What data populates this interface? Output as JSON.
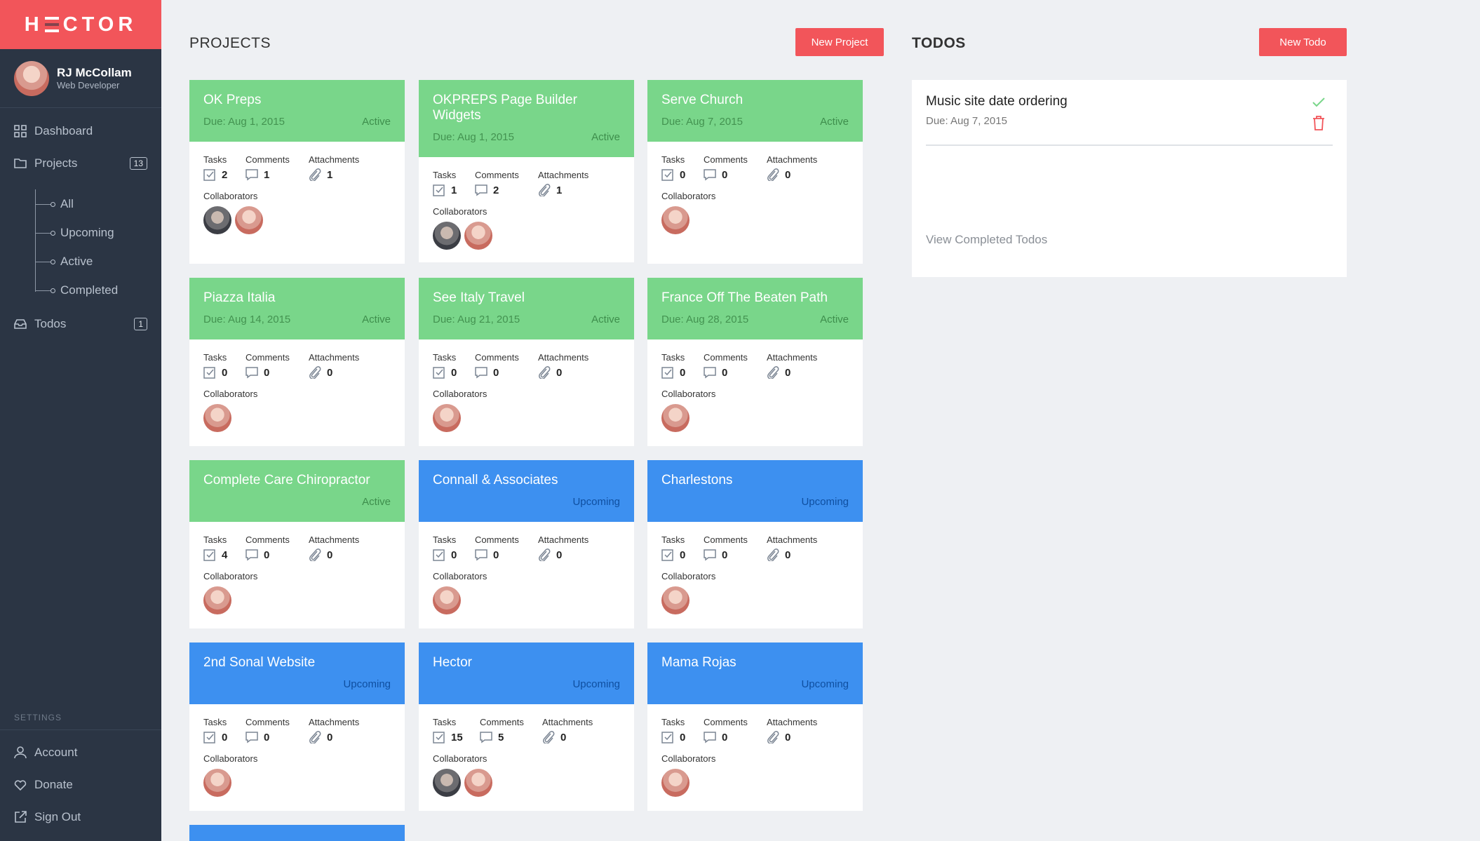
{
  "app": {
    "logo": "HECTOR"
  },
  "user": {
    "name": "RJ McCollam",
    "role": "Web Developer"
  },
  "nav": {
    "dashboard": "Dashboard",
    "projects": "Projects",
    "projects_count": "13",
    "sub": [
      "All",
      "Upcoming",
      "Active",
      "Completed"
    ],
    "todos": "Todos",
    "todos_count": "1",
    "settings_label": "SETTINGS",
    "account": "Account",
    "donate": "Donate",
    "sign_out": "Sign Out"
  },
  "projects": {
    "title": "PROJECTS",
    "new_button": "New Project",
    "labels": {
      "tasks": "Tasks",
      "comments": "Comments",
      "attachments": "Attachments",
      "collaborators": "Collaborators"
    },
    "cards": [
      {
        "title": "OK Preps",
        "due": "Due: Aug 1, 2015",
        "status": "Active",
        "tasks": "2",
        "comments": "1",
        "attachments": "1"
      },
      {
        "title": "OKPREPS Page Builder Widgets",
        "due": "Due: Aug 1, 2015",
        "status": "Active",
        "tasks": "1",
        "comments": "2",
        "attachments": "1"
      },
      {
        "title": "Serve Church",
        "due": "Due: Aug 7, 2015",
        "status": "Active",
        "tasks": "0",
        "comments": "0",
        "attachments": "0"
      },
      {
        "title": "Piazza Italia",
        "due": "Due: Aug 14, 2015",
        "status": "Active",
        "tasks": "0",
        "comments": "0",
        "attachments": "0"
      },
      {
        "title": "See Italy Travel",
        "due": "Due: Aug 21, 2015",
        "status": "Active",
        "tasks": "0",
        "comments": "0",
        "attachments": "0"
      },
      {
        "title": "France Off The Beaten Path",
        "due": "Due: Aug 28, 2015",
        "status": "Active",
        "tasks": "0",
        "comments": "0",
        "attachments": "0"
      },
      {
        "title": "Complete Care Chiropractor",
        "due": "",
        "status": "Active",
        "tasks": "4",
        "comments": "0",
        "attachments": "0"
      },
      {
        "title": "Connall & Associates",
        "due": "",
        "status": "Upcoming",
        "tasks": "0",
        "comments": "0",
        "attachments": "0"
      },
      {
        "title": "Charlestons",
        "due": "",
        "status": "Upcoming",
        "tasks": "0",
        "comments": "0",
        "attachments": "0"
      },
      {
        "title": "2nd Sonal Website",
        "due": "",
        "status": "Upcoming",
        "tasks": "0",
        "comments": "0",
        "attachments": "0"
      },
      {
        "title": "Hector",
        "due": "",
        "status": "Upcoming",
        "tasks": "15",
        "comments": "5",
        "attachments": "0"
      },
      {
        "title": "Mama Rojas",
        "due": "",
        "status": "Upcoming",
        "tasks": "0",
        "comments": "0",
        "attachments": "0"
      }
    ]
  },
  "todos": {
    "title": "TODOS",
    "new_button": "New Todo",
    "items": [
      {
        "title": "Music site date ordering",
        "due": "Due: Aug 7, 2015"
      }
    ],
    "view_completed": "View Completed Todos"
  },
  "colors": {
    "accent": "#f2555a",
    "sidebar": "#2b3544",
    "active": "#79d68a",
    "upcoming": "#3d90f0"
  }
}
